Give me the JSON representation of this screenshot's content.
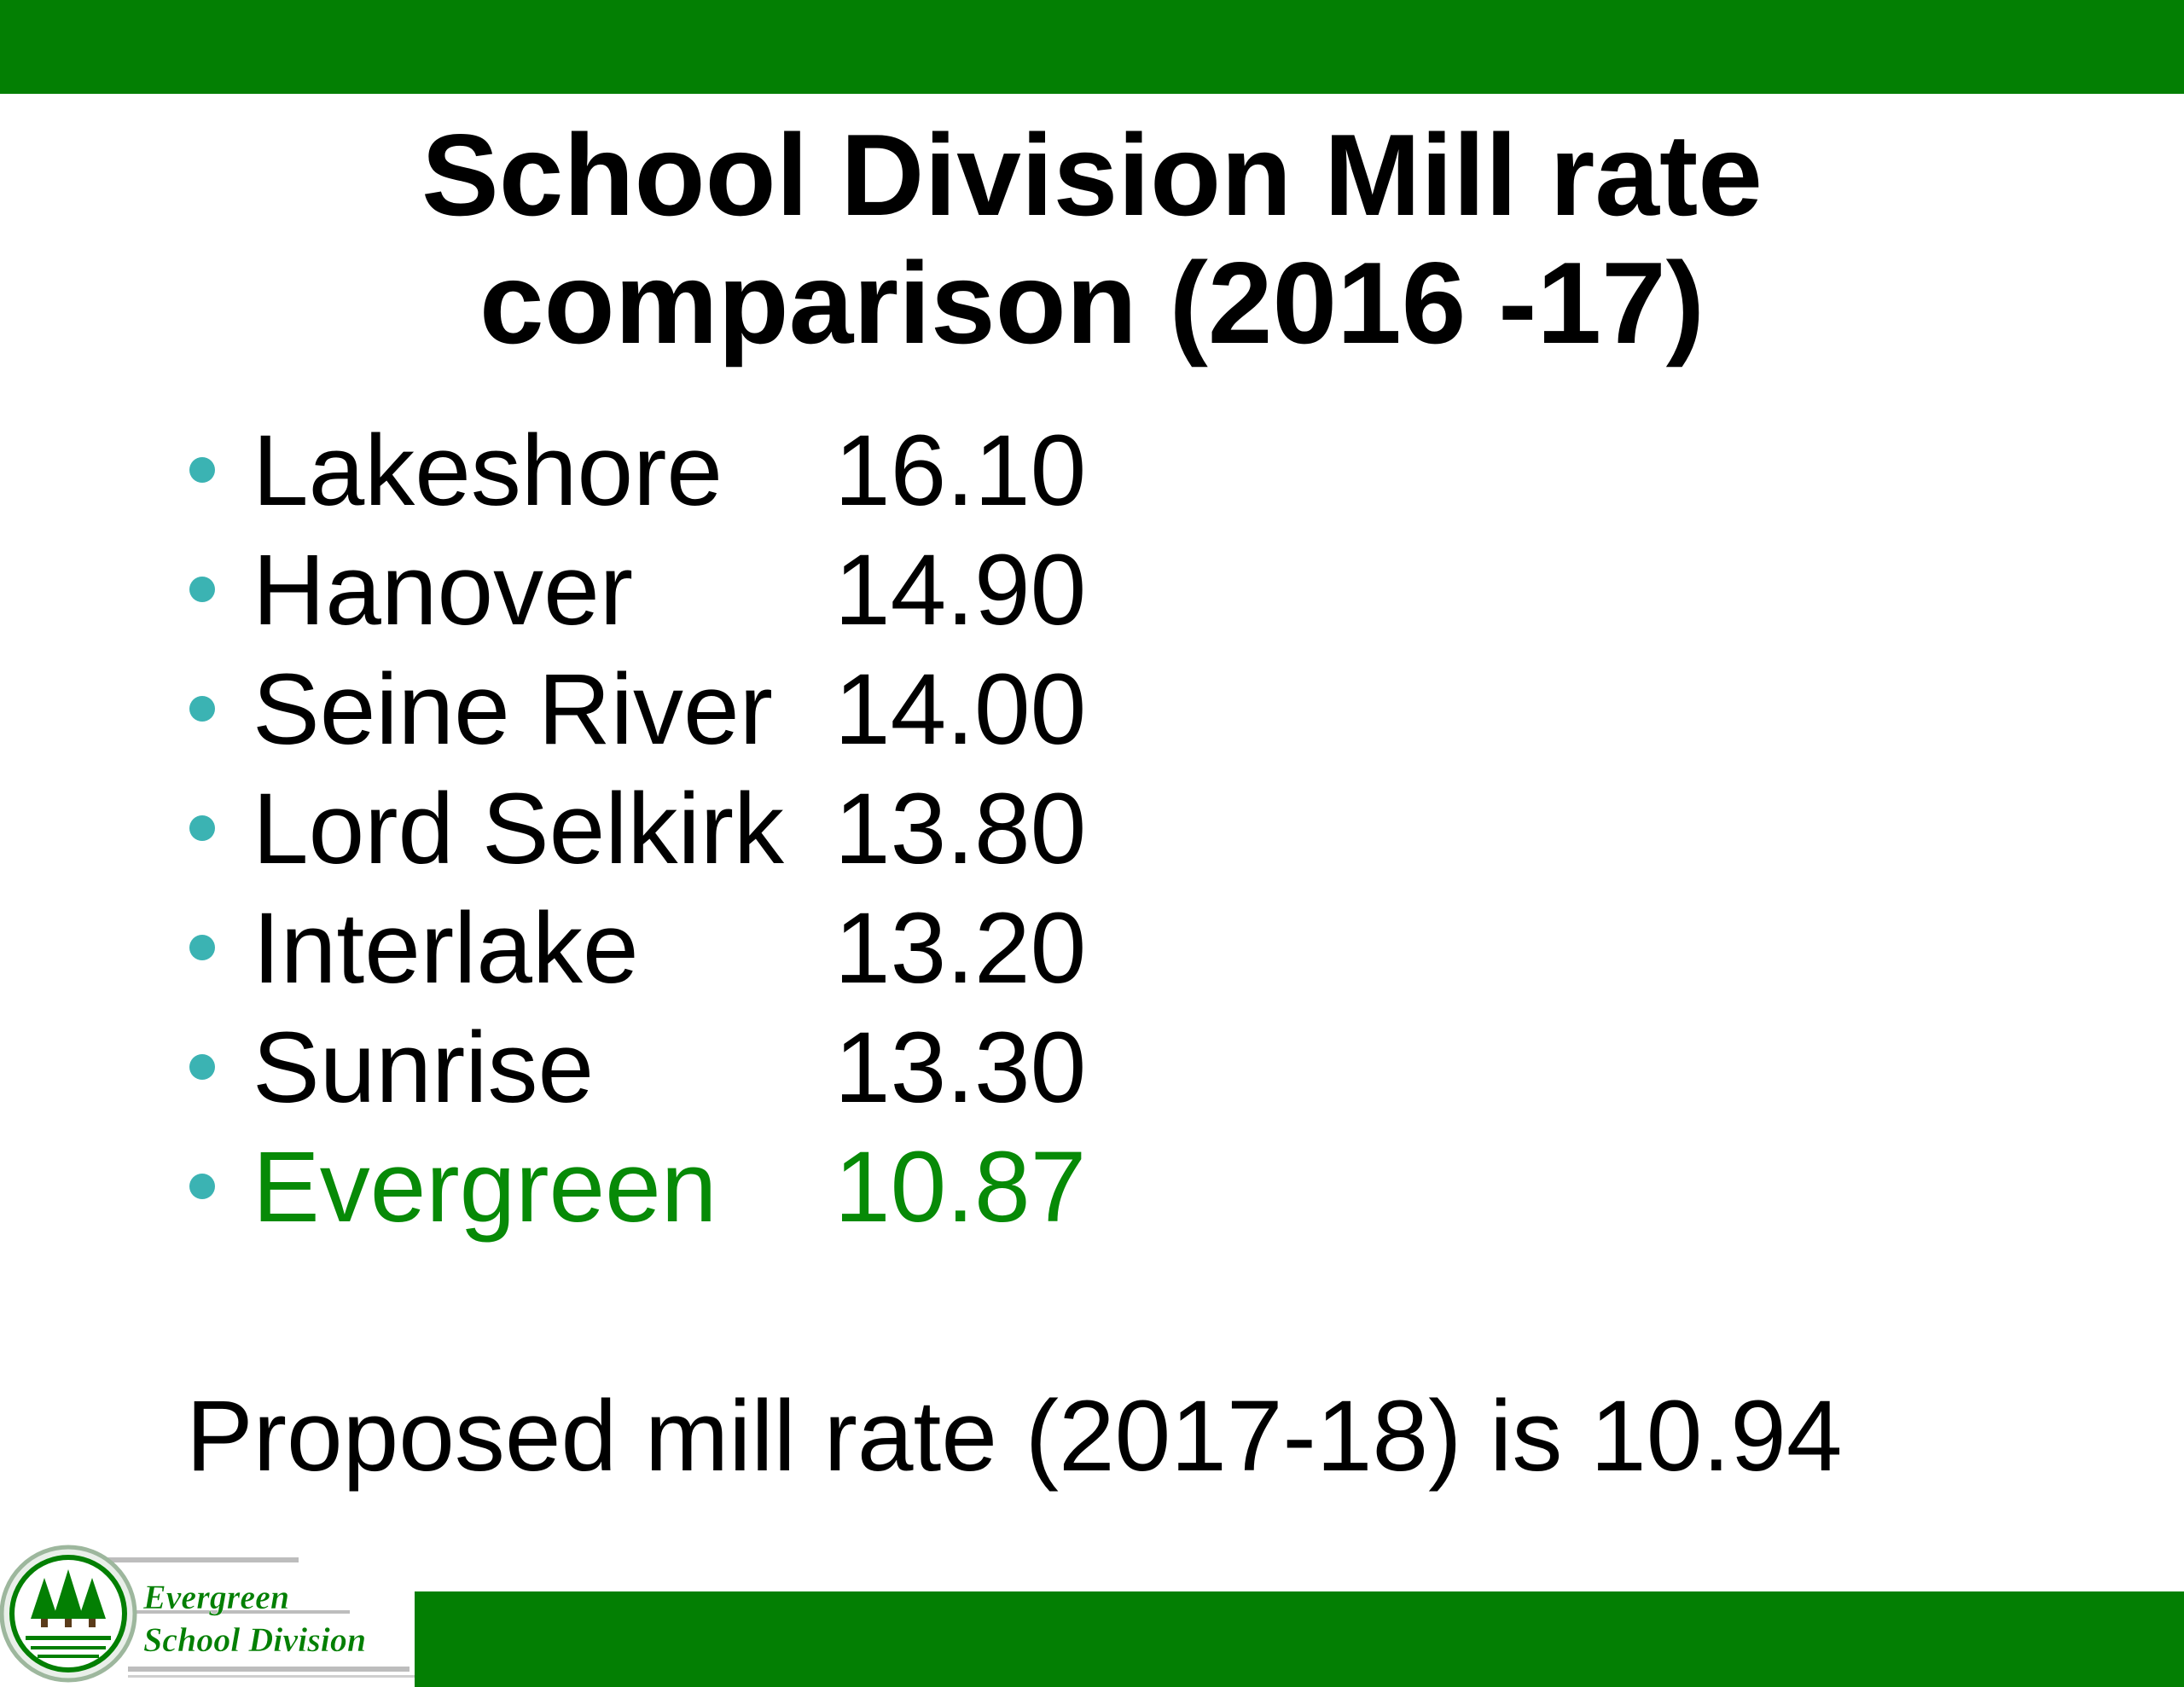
{
  "slide": {
    "title_line1": "School Division Mill rate",
    "title_line2": "comparison (2016 -17)",
    "items": [
      {
        "name": "Lakeshore",
        "value": "16.10",
        "highlight": false
      },
      {
        "name": "Hanover",
        "value": "14.90",
        "highlight": false
      },
      {
        "name": "Seine River",
        "value": "14.00",
        "highlight": false
      },
      {
        "name": "Lord Selkirk",
        "value": "13.80",
        "highlight": false
      },
      {
        "name": "Interlake",
        "value": "13.20",
        "highlight": false
      },
      {
        "name": "Sunrise",
        "value": "13.30",
        "highlight": false
      },
      {
        "name": "Evergreen",
        "value": "10.87",
        "highlight": true
      }
    ],
    "proposed_text": "Proposed mill rate (2017-18) is 10.94"
  },
  "logo": {
    "line1": "Evergreen",
    "line2": "School Division"
  },
  "colors": {
    "bar_green": "#037f03",
    "highlight_green": "#078a07",
    "bullet_teal": "#3bb3b3",
    "text": "#000000"
  }
}
